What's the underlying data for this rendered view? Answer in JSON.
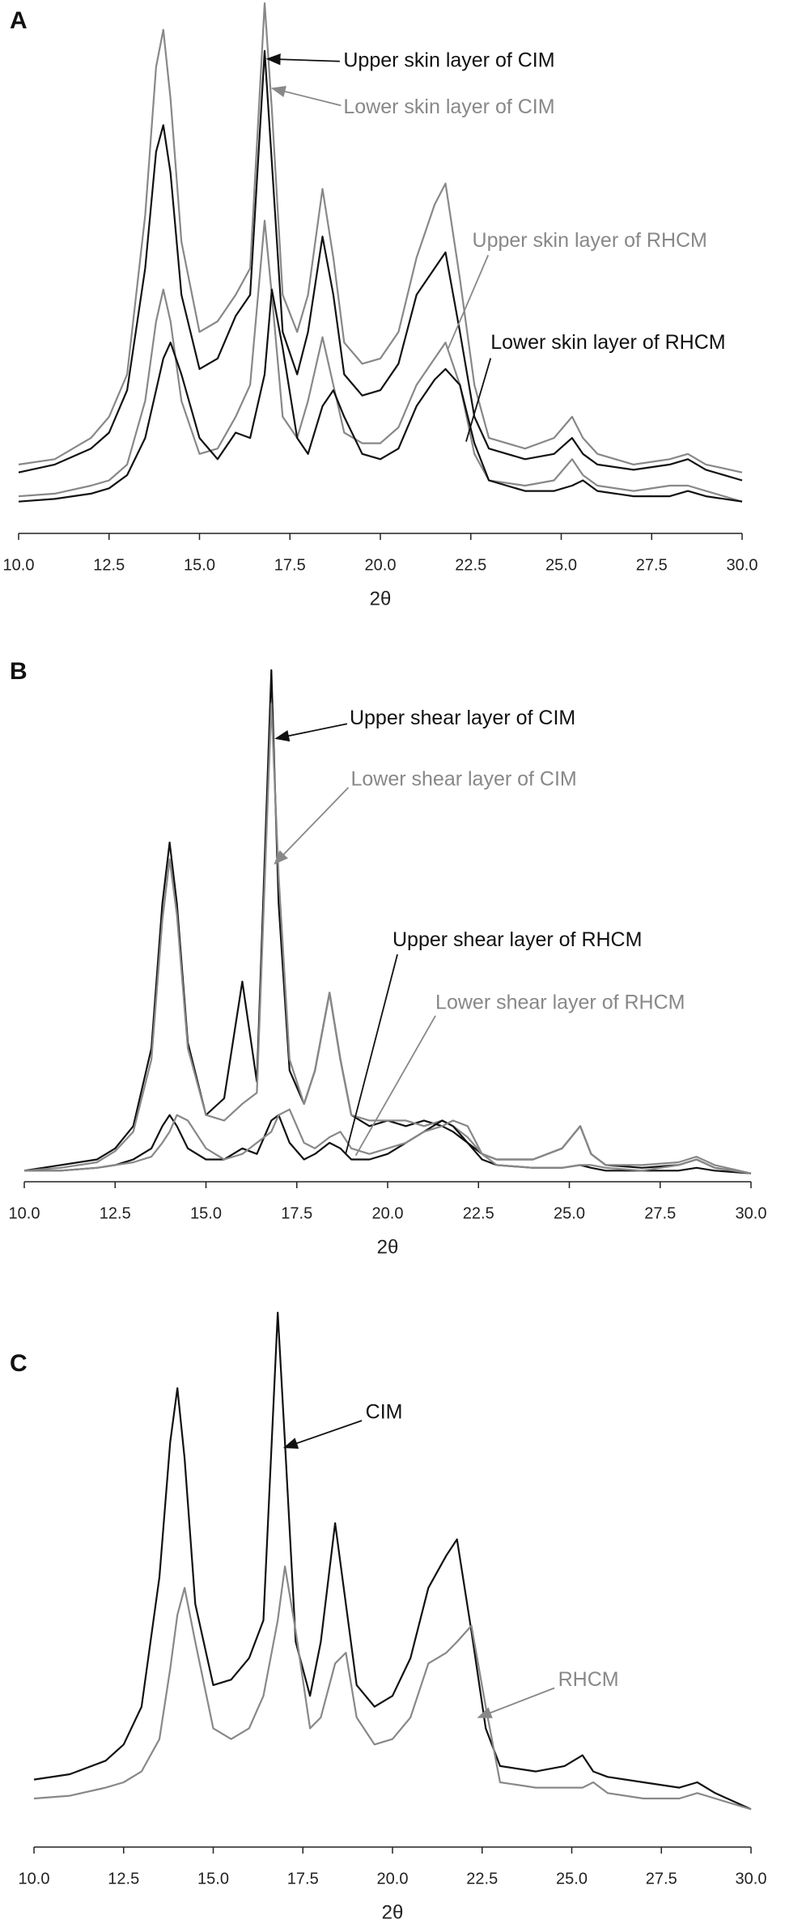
{
  "chart_data": [
    {
      "type": "line",
      "label": "A",
      "xlabel": "2θ",
      "x": [
        10,
        11,
        12,
        12.5,
        13,
        13.5,
        13.8,
        14,
        14.2,
        14.5,
        15,
        15.5,
        16,
        16.4,
        16.8,
        17,
        17.3,
        17.7,
        18,
        18.4,
        18.7,
        19,
        19.5,
        20,
        20.5,
        21,
        21.5,
        21.8,
        22.2,
        22.6,
        23,
        24,
        24.8,
        25.3,
        25.6,
        26,
        27,
        28,
        28.5,
        29,
        30
      ],
      "xlim": [
        10,
        30
      ],
      "xticks": [
        {
          "value": 10,
          "label": "10.0"
        },
        {
          "value": 12.5,
          "label": "12.5"
        },
        {
          "value": 15,
          "label": "15.0"
        },
        {
          "value": 17.5,
          "label": "17.5"
        },
        {
          "value": 20,
          "label": "20.0"
        },
        {
          "value": 22.5,
          "label": "22.5"
        },
        {
          "value": 25,
          "label": "25.0"
        },
        {
          "value": 27.5,
          "label": "27.5"
        },
        {
          "value": 30,
          "label": "30.0"
        }
      ],
      "ylim": [
        0,
        100
      ],
      "series": [
        {
          "name": "Upper skin layer of CIM",
          "color": "#111111",
          "values": [
            11.5,
            13,
            16,
            19,
            27,
            50,
            72,
            77,
            68,
            45,
            31,
            33,
            41,
            45,
            91,
            70,
            38,
            30,
            38,
            56,
            45,
            30,
            26,
            27,
            32,
            45,
            50,
            53,
            38,
            22,
            16,
            14,
            15,
            18,
            15,
            13,
            12,
            13,
            14,
            12,
            10
          ]
        },
        {
          "name": "Lower skin layer of CIM",
          "color": "#888888",
          "values": [
            13,
            14,
            18,
            22,
            30,
            60,
            88,
            95,
            82,
            55,
            38,
            40,
            45,
            50,
            100,
            80,
            45,
            38,
            45,
            65,
            52,
            36,
            32,
            33,
            38,
            52,
            62,
            66,
            48,
            28,
            18,
            16,
            18,
            22,
            18,
            15,
            13,
            14,
            15,
            13,
            11.5
          ]
        },
        {
          "name": "Upper skin layer of RHCM",
          "color": "#888888",
          "values": [
            7,
            7.5,
            9,
            10,
            13,
            25,
            40,
            46,
            40,
            25,
            15,
            16,
            22,
            28,
            59,
            45,
            22,
            18,
            25,
            37,
            28,
            19,
            17,
            17,
            20,
            28,
            33,
            36,
            28,
            15,
            10,
            9,
            10,
            14,
            11,
            9,
            8,
            9,
            9,
            8,
            6
          ]
        },
        {
          "name": "Lower skin layer of RHCM",
          "color": "#111111",
          "values": [
            6,
            6.5,
            7.5,
            8.5,
            11,
            18,
            27,
            33,
            36,
            30,
            18,
            14,
            19,
            18,
            30,
            46,
            35,
            18,
            15,
            24,
            27,
            22,
            15,
            14,
            16,
            24,
            29,
            31,
            28,
            17,
            10,
            8,
            8,
            9,
            10,
            8,
            7,
            7,
            8,
            7,
            6
          ]
        }
      ]
    },
    {
      "type": "line",
      "label": "B",
      "xlabel": "2θ",
      "x": [
        10,
        11,
        12,
        12.5,
        13,
        13.5,
        13.8,
        14,
        14.2,
        14.5,
        15,
        15.5,
        16,
        16.4,
        16.8,
        17,
        17.3,
        17.7,
        18,
        18.4,
        18.7,
        19,
        19.5,
        20,
        20.5,
        21,
        21.5,
        21.8,
        22.2,
        22.6,
        23,
        24,
        24.8,
        25.3,
        25.6,
        26,
        27,
        28,
        28.5,
        29,
        30
      ],
      "xlim": [
        10,
        30
      ],
      "xticks": [
        {
          "value": 10,
          "label": "10.0"
        },
        {
          "value": 12.5,
          "label": "12.5"
        },
        {
          "value": 15,
          "label": "15.0"
        },
        {
          "value": 17.5,
          "label": "17.5"
        },
        {
          "value": 20,
          "label": "20.0"
        },
        {
          "value": 22.5,
          "label": "22.5"
        },
        {
          "value": 25,
          "label": "25.0"
        },
        {
          "value": 27.5,
          "label": "27.5"
        },
        {
          "value": 30,
          "label": "30.0"
        }
      ],
      "ylim": [
        0,
        100
      ],
      "series": [
        {
          "name": "Upper shear layer of CIM",
          "color": "#111111",
          "values": [
            2,
            3,
            4,
            6,
            10,
            24,
            50,
            61,
            50,
            25,
            12,
            15,
            36,
            18,
            92,
            50,
            20,
            14,
            20,
            34,
            22,
            12,
            10,
            11,
            10,
            11,
            10,
            9,
            7,
            5,
            4,
            4,
            6,
            10,
            5,
            3,
            2.5,
            3,
            4,
            2.5,
            1.5
          ]
        },
        {
          "name": "Lower shear layer of CIM",
          "color": "#888888",
          "values": [
            2,
            2.5,
            3.5,
            5.5,
            9,
            22,
            47,
            58,
            48,
            24,
            12,
            11,
            14,
            16,
            86,
            55,
            22,
            14,
            20,
            34,
            22,
            12,
            11,
            11,
            11,
            10,
            11,
            10,
            8,
            5,
            4,
            4,
            6,
            10,
            5,
            3,
            3,
            3.5,
            4.5,
            3,
            1.5
          ]
        },
        {
          "name": "Upper shear layer of RHCM",
          "color": "#111111",
          "values": [
            2,
            2,
            2.5,
            3,
            4,
            6,
            10,
            12,
            10,
            6,
            4,
            4,
            6,
            5,
            11,
            12,
            7,
            4,
            5,
            7,
            6,
            4,
            4,
            5,
            7,
            9,
            11,
            10,
            7,
            4,
            3,
            2.5,
            2.5,
            3,
            2.5,
            2,
            2,
            2,
            2.5,
            2,
            1.5
          ]
        },
        {
          "name": "Lower shear layer of RHCM",
          "color": "#888888",
          "values": [
            2,
            2,
            2.5,
            3,
            3.5,
            4.5,
            7,
            9,
            12,
            11,
            6,
            4,
            5,
            7,
            9,
            12,
            13,
            7,
            6,
            8,
            9,
            6,
            5,
            6,
            7,
            9,
            10,
            11,
            10,
            5,
            3,
            2.5,
            2.5,
            3,
            3,
            2.5,
            2,
            3,
            4,
            2.5,
            1.5
          ]
        }
      ]
    },
    {
      "type": "line",
      "label": "C",
      "xlabel": "2θ",
      "x": [
        10,
        11,
        12,
        12.5,
        13,
        13.5,
        13.8,
        14,
        14.2,
        14.5,
        15,
        15.5,
        16,
        16.4,
        16.8,
        17,
        17.3,
        17.7,
        18,
        18.4,
        18.7,
        19,
        19.5,
        20,
        20.5,
        21,
        21.5,
        21.8,
        22.2,
        22.6,
        23,
        24,
        24.8,
        25.3,
        25.6,
        26,
        27,
        28,
        28.5,
        29,
        30
      ],
      "xlim": [
        10,
        30
      ],
      "xticks": [
        {
          "value": 10,
          "label": "10.0"
        },
        {
          "value": 12.5,
          "label": "12.5"
        },
        {
          "value": 15,
          "label": "15.0"
        },
        {
          "value": 17.5,
          "label": "17.5"
        },
        {
          "value": 20,
          "label": "20.0"
        },
        {
          "value": 22.5,
          "label": "22.5"
        },
        {
          "value": 25,
          "label": "25.0"
        },
        {
          "value": 27.5,
          "label": "27.5"
        },
        {
          "value": 30,
          "label": "30.0"
        }
      ],
      "ylim": [
        0,
        100
      ],
      "series": [
        {
          "name": "CIM",
          "color": "#111111",
          "values": [
            12.5,
            13.5,
            16,
            19,
            26,
            50,
            75,
            85,
            72,
            45,
            30,
            31,
            35,
            42,
            99,
            75,
            38,
            28,
            38,
            60,
            45,
            30,
            26,
            28,
            35,
            48,
            54,
            57,
            40,
            22,
            15,
            14,
            15,
            17,
            14,
            13,
            12,
            11,
            12,
            10,
            7
          ]
        },
        {
          "name": "RHCM",
          "color": "#888888",
          "values": [
            9,
            9.5,
            11,
            12,
            14,
            20,
            33,
            43,
            48,
            38,
            22,
            20,
            22,
            28,
            42,
            52,
            40,
            22,
            24,
            34,
            36,
            24,
            19,
            20,
            24,
            34,
            36,
            38,
            41,
            26,
            12,
            11,
            11,
            11,
            12,
            10,
            9,
            9,
            10,
            9,
            7
          ]
        }
      ]
    }
  ]
}
